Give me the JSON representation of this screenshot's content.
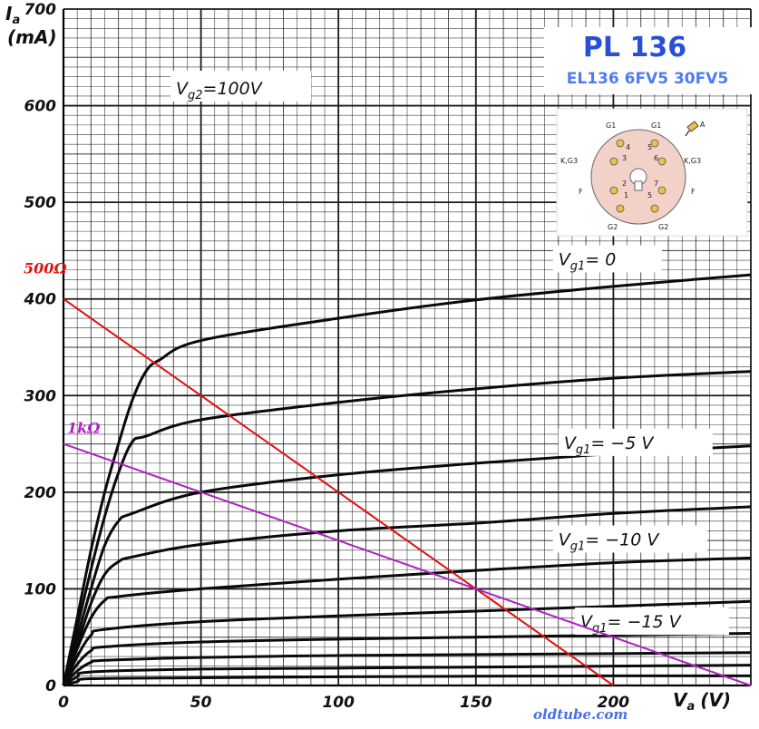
{
  "chart_data": {
    "type": "line",
    "axes": {
      "y_title": [
        "I",
        "a",
        "(mA)"
      ],
      "x_title": [
        "V",
        "a",
        "(V)"
      ],
      "xlim": [
        0,
        250
      ],
      "ylim": [
        0,
        700
      ],
      "x_ticks": [
        "0",
        "50",
        "100",
        "150",
        "200"
      ],
      "x_tick_values": [
        0,
        50,
        100,
        150,
        200
      ],
      "y_ticks": [
        "0",
        "100",
        "200",
        "300",
        "400",
        "500",
        "600",
        "700"
      ],
      "y_tick_values": [
        0,
        100,
        200,
        300,
        400,
        500,
        600,
        700
      ],
      "grid": true
    },
    "condition": {
      "prefix": "V",
      "sub": "g2",
      "value": "=100V"
    },
    "curves": [
      {
        "values": [
          [
            0,
            0
          ],
          [
            5,
            70
          ],
          [
            10,
            140
          ],
          [
            15,
            200
          ],
          [
            20,
            250
          ],
          [
            25,
            295
          ],
          [
            30,
            325
          ],
          [
            35,
            337
          ],
          [
            50,
            357
          ],
          [
            100,
            380
          ],
          [
            150,
            399
          ],
          [
            200,
            413
          ],
          [
            250,
            425
          ]
        ]
      },
      {
        "values": [
          [
            0,
            0
          ],
          [
            5,
            60
          ],
          [
            10,
            120
          ],
          [
            15,
            175
          ],
          [
            20,
            220
          ],
          [
            25,
            252
          ],
          [
            30,
            258
          ],
          [
            50,
            275
          ],
          [
            100,
            293
          ],
          [
            150,
            307
          ],
          [
            200,
            318
          ],
          [
            250,
            325
          ]
        ]
      },
      {
        "values": [
          [
            0,
            0
          ],
          [
            5,
            50
          ],
          [
            10,
            100
          ],
          [
            15,
            145
          ],
          [
            20,
            170
          ],
          [
            25,
            178
          ],
          [
            50,
            200
          ],
          [
            100,
            218
          ],
          [
            150,
            230
          ],
          [
            200,
            240
          ],
          [
            250,
            248
          ]
        ]
      },
      {
        "values": [
          [
            0,
            0
          ],
          [
            5,
            42
          ],
          [
            10,
            85
          ],
          [
            15,
            115
          ],
          [
            20,
            128
          ],
          [
            25,
            133
          ],
          [
            50,
            146
          ],
          [
            100,
            160
          ],
          [
            150,
            168
          ],
          [
            200,
            178
          ],
          [
            250,
            185
          ]
        ]
      },
      {
        "values": [
          [
            0,
            0
          ],
          [
            5,
            38
          ],
          [
            10,
            70
          ],
          [
            15,
            88
          ],
          [
            20,
            92
          ],
          [
            50,
            100
          ],
          [
            100,
            110
          ],
          [
            150,
            119
          ],
          [
            200,
            127
          ],
          [
            250,
            132
          ]
        ]
      },
      {
        "values": [
          [
            0,
            0
          ],
          [
            5,
            30
          ],
          [
            10,
            52
          ],
          [
            15,
            58
          ],
          [
            50,
            66
          ],
          [
            100,
            72
          ],
          [
            150,
            77
          ],
          [
            200,
            82
          ],
          [
            250,
            87
          ]
        ]
      },
      {
        "values": [
          [
            0,
            0
          ],
          [
            5,
            22
          ],
          [
            10,
            36
          ],
          [
            15,
            40
          ],
          [
            50,
            45
          ],
          [
            100,
            48
          ],
          [
            150,
            50
          ],
          [
            200,
            52
          ],
          [
            250,
            54
          ]
        ]
      },
      {
        "values": [
          [
            0,
            0
          ],
          [
            5,
            15
          ],
          [
            10,
            24
          ],
          [
            15,
            26
          ],
          [
            50,
            29
          ],
          [
            100,
            31
          ],
          [
            150,
            32
          ],
          [
            200,
            33
          ],
          [
            250,
            34
          ]
        ]
      },
      {
        "values": [
          [
            0,
            0
          ],
          [
            5,
            9
          ],
          [
            10,
            14
          ],
          [
            50,
            17
          ],
          [
            100,
            18
          ],
          [
            150,
            19
          ],
          [
            200,
            20
          ],
          [
            250,
            21
          ]
        ]
      },
      {
        "values": [
          [
            0,
            0
          ],
          [
            5,
            4
          ],
          [
            10,
            7
          ],
          [
            50,
            8
          ],
          [
            100,
            9
          ],
          [
            200,
            10
          ],
          [
            250,
            10
          ]
        ]
      }
    ],
    "curve_labels": [
      {
        "prefix": "V",
        "sub": "g1",
        "value": "= 0",
        "x": 180,
        "y": 435
      },
      {
        "prefix": "V",
        "sub": "g1",
        "value": "= −5 V",
        "x": 182,
        "y": 245
      },
      {
        "prefix": "V",
        "sub": "g1",
        "value": "= −10 V",
        "x": 180,
        "y": 145
      },
      {
        "prefix": "V",
        "sub": "g1",
        "value": "= −15 V",
        "x": 188,
        "y": 60
      }
    ],
    "load_lines": [
      {
        "label": "500Ω",
        "color": "#e01010",
        "points": [
          [
            0,
            400
          ],
          [
            200,
            0
          ]
        ]
      },
      {
        "label": "1kΩ",
        "color": "#b020c0",
        "points": [
          [
            0,
            250
          ],
          [
            250,
            0
          ]
        ]
      }
    ]
  },
  "tube": {
    "name": "PL 136",
    "equivalents": "EL136  6FV5  30FV5",
    "pins": [
      {
        "num": "1",
        "name": "G2"
      },
      {
        "num": "2",
        "name": "F"
      },
      {
        "num": "3",
        "name": "K,G3"
      },
      {
        "num": "4",
        "name": "G1"
      },
      {
        "num": "5",
        "name": "G1"
      },
      {
        "num": "6",
        "name": "K,G3"
      },
      {
        "num": "7",
        "name": "F"
      },
      {
        "num": "5",
        "name": "G2"
      }
    ],
    "cap_label": "A"
  },
  "watermark": "oldtube.com",
  "colors": {
    "grid": "#1a1a1a",
    "curve": "#0a0a0a",
    "socket_fill": "#f2d2c8",
    "pin_fill": "#e8c24a"
  }
}
